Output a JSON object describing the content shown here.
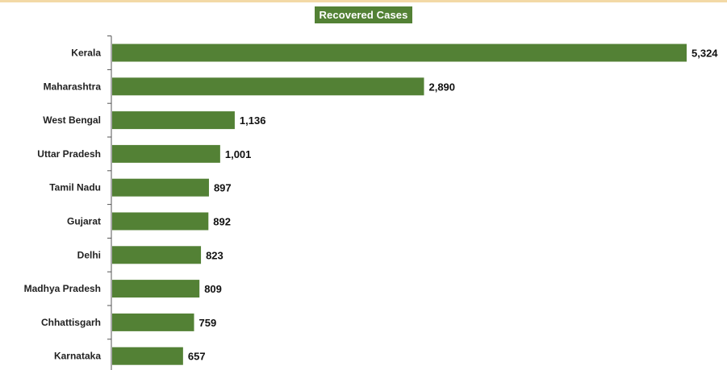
{
  "chart_data": {
    "type": "bar",
    "orientation": "horizontal",
    "title": "Recovered Cases",
    "xlabel": "",
    "ylabel": "",
    "categories": [
      "Kerala",
      "Maharashtra",
      "West Bengal",
      "Uttar Pradesh",
      "Tamil Nadu",
      "Gujarat",
      "Delhi",
      "Madhya Pradesh",
      "Chhattisgarh",
      "Karnataka"
    ],
    "values": [
      5324,
      2890,
      1136,
      1001,
      897,
      892,
      823,
      809,
      759,
      657
    ],
    "value_labels": [
      "5,324",
      "2,890",
      "1,136",
      "1,001",
      "897",
      "892",
      "823",
      "809",
      "759",
      "657"
    ],
    "xlim": [
      0,
      5324
    ],
    "grid": false,
    "legend": "none",
    "colors": {
      "bar": "#538135",
      "title_background": "#538135",
      "title_text": "#ffffff",
      "top_rule": "#f3d9a6",
      "axis": "#555555"
    }
  }
}
